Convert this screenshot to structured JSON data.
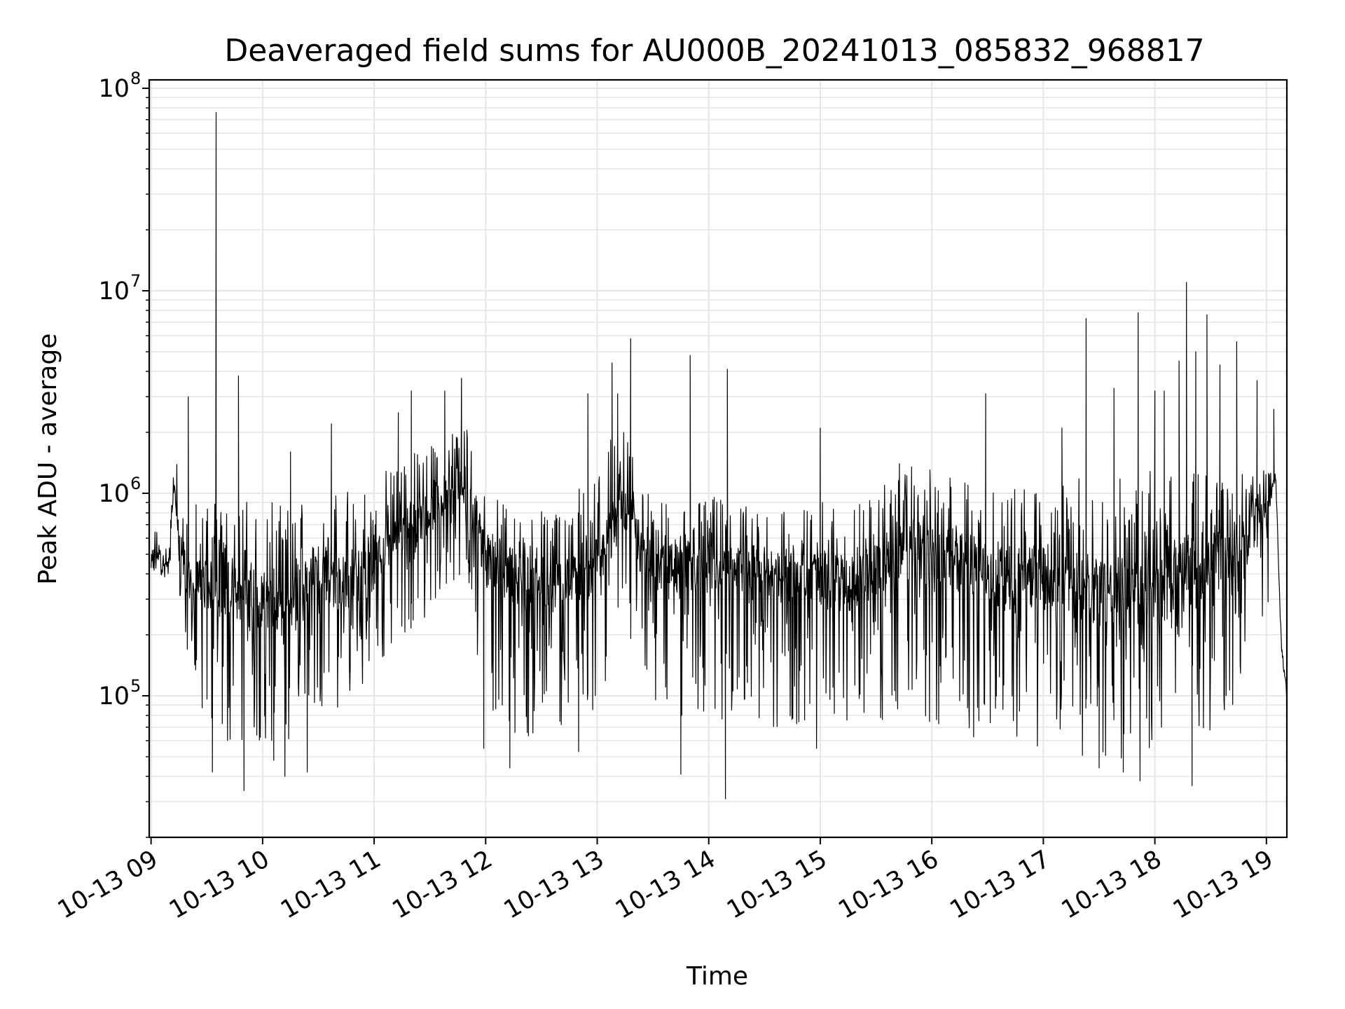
{
  "chart_data": {
    "type": "line",
    "title": "Deaveraged field sums for AU000B_20241013_085832_968817",
    "xlabel": "Time",
    "ylabel": "Peak ADU - average",
    "yscale": "log",
    "ylim": [
      20000,
      110000000
    ],
    "xlim": [
      "2024-10-13 08:59",
      "2024-10-13 19:11"
    ],
    "x_tick_labels": [
      "10-13 09",
      "10-13 10",
      "10-13 11",
      "10-13 12",
      "10-13 13",
      "10-13 14",
      "10-13 15",
      "10-13 16",
      "10-13 17",
      "10-13 18",
      "10-13 19"
    ],
    "y_tick_labels": [
      {
        "base": "10",
        "exp": "5",
        "value": 100000
      },
      {
        "base": "10",
        "exp": "6",
        "value": 1000000
      },
      {
        "base": "10",
        "exp": "7",
        "value": 10000000
      },
      {
        "base": "10",
        "exp": "8",
        "value": 100000000
      }
    ],
    "grid": true,
    "line_color": "#000000",
    "series_envelope": {
      "x": [
        "09:00",
        "09:10",
        "09:12",
        "09:17",
        "09:20",
        "09:30",
        "09:34",
        "09:36",
        "09:45",
        "09:50",
        "10:00",
        "10:15",
        "10:30",
        "10:40",
        "10:50",
        "11:00",
        "11:15",
        "11:30",
        "11:40",
        "11:48",
        "11:55",
        "12:00",
        "12:20",
        "12:40",
        "12:55",
        "13:05",
        "13:12",
        "13:20",
        "13:30",
        "13:45",
        "14:00",
        "14:15",
        "14:30",
        "14:45",
        "15:00",
        "15:15",
        "15:30",
        "15:45",
        "16:00",
        "16:15",
        "16:30",
        "16:45",
        "17:00",
        "17:15",
        "17:30",
        "17:45",
        "18:00",
        "18:15",
        "18:30",
        "18:45",
        "19:00",
        "19:05",
        "19:08",
        "19:11"
      ],
      "mid": [
        500000,
        450000,
        1100000,
        500000,
        350000,
        350000,
        400000,
        350000,
        350000,
        300000,
        280000,
        280000,
        450000,
        350000,
        380000,
        450000,
        650000,
        800000,
        1000000,
        1100000,
        700000,
        450000,
        380000,
        350000,
        400000,
        550000,
        1000000,
        600000,
        420000,
        420000,
        420000,
        400000,
        420000,
        380000,
        380000,
        350000,
        420000,
        550000,
        480000,
        450000,
        400000,
        400000,
        380000,
        350000,
        330000,
        320000,
        330000,
        400000,
        450000,
        550000,
        900000,
        1200000,
        180000,
        100000
      ],
      "lo": [
        400000,
        380000,
        800000,
        180000,
        100000,
        70000,
        60000,
        60000,
        50000,
        60000,
        60000,
        55000,
        90000,
        85000,
        100000,
        120000,
        200000,
        250000,
        350000,
        400000,
        150000,
        90000,
        60000,
        70000,
        70000,
        120000,
        300000,
        150000,
        90000,
        80000,
        70000,
        80000,
        70000,
        70000,
        80000,
        75000,
        70000,
        80000,
        70000,
        65000,
        60000,
        55000,
        55000,
        50000,
        50000,
        45000,
        50000,
        50000,
        60000,
        100000,
        200000,
        500000,
        150000,
        80000
      ],
      "hi": [
        700000,
        600000,
        1800000,
        900000,
        900000,
        1000000,
        1100000,
        1000000,
        1000000,
        950000,
        900000,
        900000,
        1300000,
        1000000,
        1100000,
        1200000,
        1600000,
        1700000,
        2000000,
        2500000,
        1600000,
        1000000,
        800000,
        900000,
        1200000,
        1600000,
        2500000,
        1500000,
        900000,
        900000,
        1000000,
        900000,
        900000,
        850000,
        900000,
        950000,
        1000000,
        1500000,
        1300000,
        1200000,
        1100000,
        1100000,
        1100000,
        1200000,
        1200000,
        1300000,
        1300000,
        1300000,
        1300000,
        1400000,
        1600000,
        1800000,
        250000,
        130000
      ]
    },
    "spikes": [
      {
        "x": "09:35",
        "y": 76000000
      },
      {
        "x": "09:20",
        "y": 3000000
      },
      {
        "x": "09:47",
        "y": 3800000
      },
      {
        "x": "10:15",
        "y": 1600000
      },
      {
        "x": "10:37",
        "y": 2200000
      },
      {
        "x": "11:13",
        "y": 2500000
      },
      {
        "x": "11:20",
        "y": 3200000
      },
      {
        "x": "11:38",
        "y": 3200000
      },
      {
        "x": "11:47",
        "y": 3700000
      },
      {
        "x": "12:55",
        "y": 3100000
      },
      {
        "x": "13:08",
        "y": 4400000
      },
      {
        "x": "13:11",
        "y": 3100000
      },
      {
        "x": "13:18",
        "y": 5800000
      },
      {
        "x": "13:50",
        "y": 4800000
      },
      {
        "x": "14:10",
        "y": 4100000
      },
      {
        "x": "15:00",
        "y": 2100000
      },
      {
        "x": "16:29",
        "y": 3100000
      },
      {
        "x": "17:10",
        "y": 2100000
      },
      {
        "x": "17:23",
        "y": 7300000
      },
      {
        "x": "17:38",
        "y": 3300000
      },
      {
        "x": "17:51",
        "y": 7800000
      },
      {
        "x": "18:00",
        "y": 3200000
      },
      {
        "x": "18:05",
        "y": 3200000
      },
      {
        "x": "18:13",
        "y": 4500000
      },
      {
        "x": "18:17",
        "y": 11000000
      },
      {
        "x": "18:22",
        "y": 5000000
      },
      {
        "x": "18:28",
        "y": 7600000
      },
      {
        "x": "18:35",
        "y": 4300000
      },
      {
        "x": "18:44",
        "y": 5600000
      },
      {
        "x": "18:55",
        "y": 3600000
      },
      {
        "x": "19:04",
        "y": 2600000
      }
    ],
    "dips": [
      {
        "x": "09:33",
        "y": 42000
      },
      {
        "x": "09:50",
        "y": 34000
      },
      {
        "x": "10:06",
        "y": 48000
      },
      {
        "x": "10:12",
        "y": 40000
      },
      {
        "x": "10:24",
        "y": 42000
      },
      {
        "x": "11:59",
        "y": 55000
      },
      {
        "x": "12:13",
        "y": 44000
      },
      {
        "x": "12:50",
        "y": 53000
      },
      {
        "x": "13:45",
        "y": 41000
      },
      {
        "x": "14:09",
        "y": 31000
      },
      {
        "x": "14:58",
        "y": 55000
      },
      {
        "x": "17:30",
        "y": 44000
      },
      {
        "x": "17:43",
        "y": 42000
      },
      {
        "x": "17:52",
        "y": 38000
      },
      {
        "x": "18:20",
        "y": 36000
      }
    ]
  }
}
